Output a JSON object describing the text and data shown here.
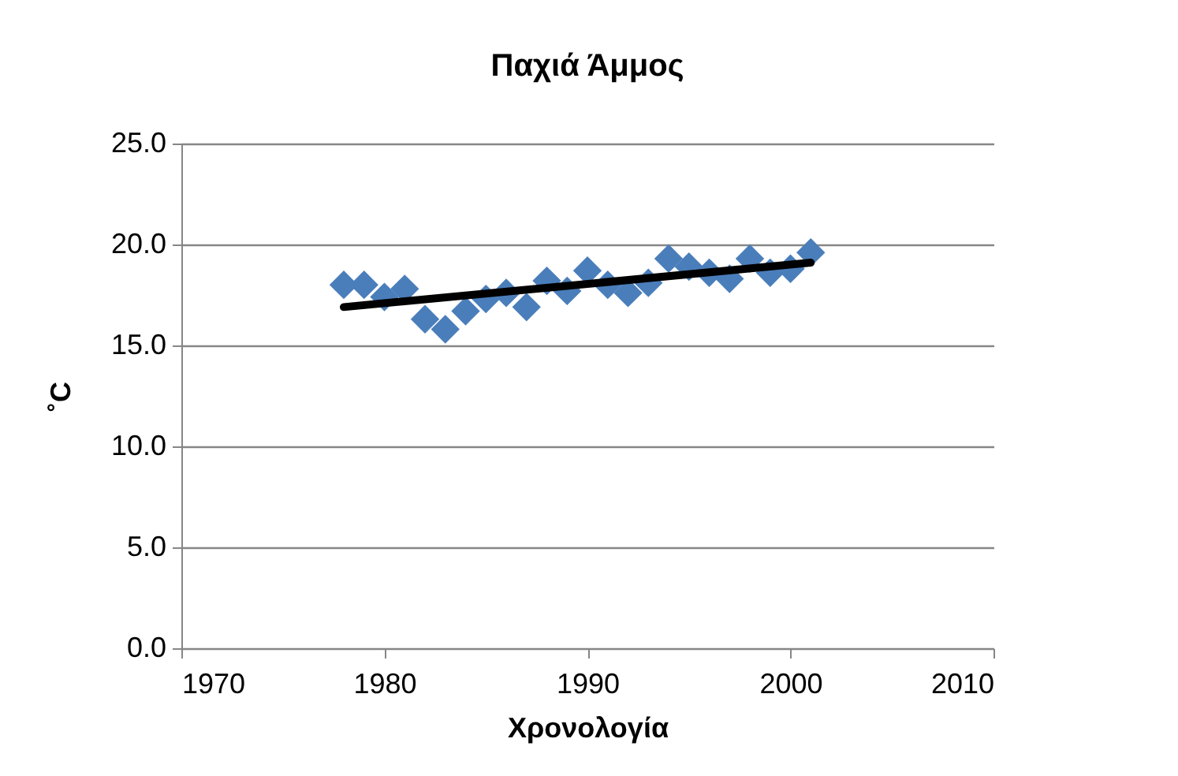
{
  "chart_data": {
    "type": "scatter",
    "title": "Παχιά Άμμος",
    "xlabel": "Χρονολογία",
    "ylabel": "˚C",
    "xlim": [
      1970,
      2010
    ],
    "xticks": [
      1970,
      1980,
      1990,
      2000,
      2010
    ],
    "ylim": [
      0,
      25
    ],
    "yticks": [
      {
        "value": 0,
        "label": "0.0"
      },
      {
        "value": 5,
        "label": "5.0"
      },
      {
        "value": 10,
        "label": "10.0"
      },
      {
        "value": 15,
        "label": "15.0"
      },
      {
        "value": 20,
        "label": "20.0"
      },
      {
        "value": 25,
        "label": "25.0"
      }
    ],
    "grid": "y",
    "series": [
      {
        "marker": "diamond",
        "color": "#4a7ebb",
        "x": [
          1978,
          1979,
          1980,
          1981,
          1982,
          1983,
          1984,
          1985,
          1986,
          1987,
          1988,
          1989,
          1990,
          1991,
          1992,
          1993,
          1994,
          1995,
          1996,
          1997,
          1998,
          1999,
          2000,
          2001
        ],
        "values": [
          18.0,
          18.0,
          17.4,
          17.8,
          16.3,
          15.8,
          16.7,
          17.3,
          17.6,
          16.9,
          18.2,
          17.7,
          18.7,
          18.0,
          17.6,
          18.1,
          19.3,
          18.9,
          18.6,
          18.3,
          19.3,
          18.6,
          18.8,
          19.6
        ]
      },
      {
        "type": "line",
        "color": "#000000",
        "x": [
          1978,
          2001
        ],
        "values": [
          16.9,
          19.1
        ],
        "line_style": "solid",
        "marker": "none"
      }
    ]
  }
}
